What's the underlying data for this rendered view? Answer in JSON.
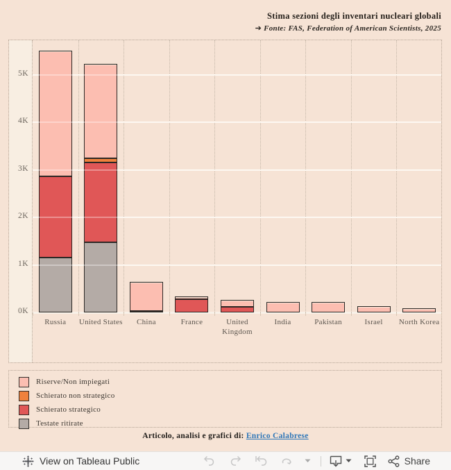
{
  "header": {
    "title": "Stima sezioni degli inventari nucleari globali",
    "subtitle_arrow": "➔",
    "subtitle": "Fonte:  FAS, Federation of American Scientists, 2025"
  },
  "chart_data": {
    "type": "bar",
    "stacked": true,
    "title": "Stima sezioni degli inventari nucleari globali",
    "source": "Fonte: FAS, Federation of American Scientists, 2025",
    "categories": [
      "Russia",
      "United States",
      "China",
      "France",
      "United Kingdom",
      "India",
      "Pakistan",
      "Israel",
      "North Korea"
    ],
    "series": [
      {
        "name": "Testate ritirate",
        "color": "#b4aba6",
        "values": [
          1150,
          1477,
          0,
          0,
          0,
          0,
          0,
          0,
          0
        ]
      },
      {
        "name": "Schierato strategico",
        "color": "#e05757",
        "values": [
          1718,
          1670,
          24,
          280,
          120,
          0,
          0,
          0,
          0
        ]
      },
      {
        "name": "Schierato non strategico",
        "color": "#f0813c",
        "values": [
          0,
          100,
          0,
          0,
          0,
          0,
          0,
          0,
          0
        ]
      },
      {
        "name": "Riserve/Non impiegati",
        "color": "#fcbeb1",
        "values": [
          2591,
          1930,
          576,
          10,
          105,
          180,
          170,
          90,
          50
        ]
      }
    ],
    "totals": [
      5459,
      5177,
      600,
      290,
      225,
      180,
      170,
      90,
      50
    ],
    "y_ticks": [
      "0K",
      "1K",
      "2K",
      "3K",
      "4K",
      "5K"
    ],
    "y_tick_values": [
      0,
      1000,
      2000,
      3000,
      4000,
      5000
    ],
    "ylim": [
      0,
      5725
    ],
    "grid": "horizontal-white",
    "legend_position": "bottom-left-box"
  },
  "legend": {
    "items": [
      {
        "label": "Riserve/Non impiegati",
        "color": "#fcbeb1"
      },
      {
        "label": "Schierato non strategico",
        "color": "#f0813c"
      },
      {
        "label": "Schierato strategico",
        "color": "#e05757"
      },
      {
        "label": "Testate ritirate",
        "color": "#b4aba6"
      }
    ]
  },
  "footer": {
    "prefix": "Articolo, analisi e grafici di:",
    "link": "Enrico Calabrese"
  },
  "toolbar": {
    "view_label": "View on Tableau Public",
    "share_label": "Share",
    "icons": [
      "tableau-logo",
      "undo",
      "redo",
      "revert",
      "refresh",
      "refresh-caret",
      "download",
      "fullscreen",
      "share"
    ]
  },
  "colors": {
    "page_bg": "#f6e3d5",
    "axis_strip_bg": "#f8eee2",
    "bar_border": "#2b2724",
    "dotted_border": "#b3a394",
    "link": "#2d76b8",
    "toolbar_bg": "#f7f6f5"
  }
}
